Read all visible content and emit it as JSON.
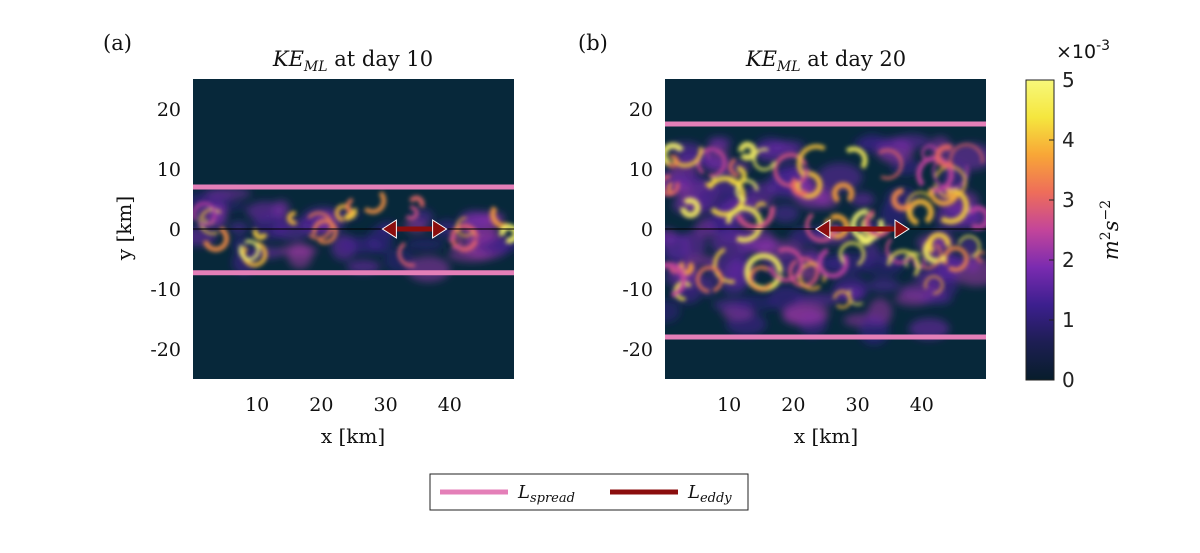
{
  "chart_data": [
    {
      "type": "heatmap",
      "panel_label": "(a)",
      "title_var": "KE",
      "title_sub": "ML",
      "title_rest": " at day 10",
      "xlabel": "x [km]",
      "ylabel": "y [km]",
      "xlim": [
        0,
        50
      ],
      "ylim": [
        -25,
        25
      ],
      "xticks": [
        10,
        20,
        30,
        40
      ],
      "yticks": [
        20,
        10,
        0,
        -10,
        -20
      ],
      "L_spread_y": [
        7,
        -7.3
      ],
      "L_eddy_x": [
        29.5,
        39.5
      ],
      "L_eddy_y": 0
    },
    {
      "type": "heatmap",
      "panel_label": "(b)",
      "title_var": "KE",
      "title_sub": "ML",
      "title_rest": " at day 20",
      "xlabel": "x [km]",
      "ylabel": "",
      "xlim": [
        0,
        50
      ],
      "ylim": [
        -25,
        25
      ],
      "xticks": [
        10,
        20,
        30,
        40
      ],
      "yticks": [
        20,
        10,
        0,
        -10,
        -20
      ],
      "L_spread_y": [
        17.5,
        -18
      ],
      "L_eddy_x": [
        23.5,
        38
      ],
      "L_eddy_y": 0
    }
  ],
  "colorbar": {
    "min": 0,
    "max": 5,
    "ticks": [
      0,
      1,
      2,
      3,
      4,
      5
    ],
    "exponent_label": "×10",
    "exponent": "-3",
    "unit_base_m": "m",
    "unit_m_exp": "2",
    "unit_base_s": "s",
    "unit_s_exp": "−2",
    "stops": [
      "#071d2b",
      "#1d1e53",
      "#3c1f8e",
      "#7a2bb0",
      "#c3459a",
      "#ee6d5a",
      "#f8a637",
      "#f5e63e",
      "#f7f87a"
    ]
  },
  "legend": {
    "items": [
      {
        "var": "L",
        "sub": "spread",
        "color": "#e47fb8"
      },
      {
        "var": "L",
        "sub": "eddy",
        "color": "#8b0e0e"
      }
    ]
  },
  "colors": {
    "background": "#07283a",
    "spread_line": "#e47fb8",
    "eddy_arrow": "#8b0e0e",
    "zero_line": "#000000"
  }
}
